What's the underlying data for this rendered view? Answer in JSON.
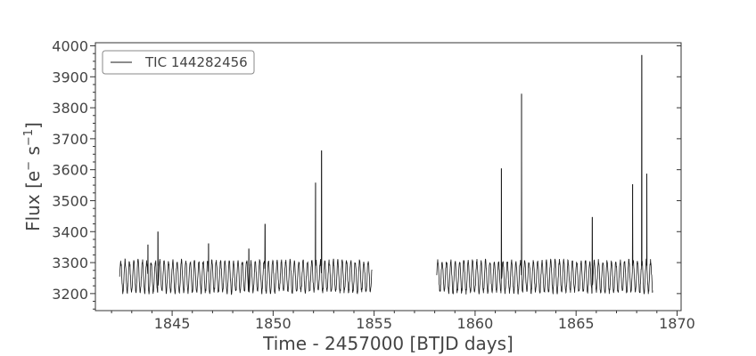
{
  "chart_data": {
    "type": "line",
    "xlabel": "Time - 2457000 [BTJD days]",
    "ylabel_main": "Flux [e",
    "ylabel_sup1": "−",
    "ylabel_mid": " s",
    "ylabel_sup2": "−1",
    "ylabel_end": "]",
    "xlim": [
      1841.2,
      1870.2
    ],
    "ylim": [
      3145,
      4010
    ],
    "x_ticks": [
      1845,
      1850,
      1855,
      1860,
      1865,
      1870
    ],
    "x_tick_labels": [
      "1845",
      "1850",
      "1855",
      "1860",
      "1865",
      "1870"
    ],
    "y_ticks": [
      3200,
      3300,
      3400,
      3500,
      3600,
      3700,
      3800,
      3900,
      4000
    ],
    "y_tick_labels": [
      "3200",
      "3300",
      "3400",
      "3500",
      "3600",
      "3700",
      "3800",
      "3900",
      "4000"
    ],
    "legend_position": "top-left",
    "series": [
      {
        "name": "TIC 144282456",
        "color": "#1a1a1a",
        "segments": [
          {
            "x_start": 1842.4,
            "x_end": 1854.9,
            "baseline": 3255,
            "amplitude": 50,
            "period": 0.215
          },
          {
            "x_start": 1858.1,
            "x_end": 1868.8,
            "baseline": 3255,
            "amplitude": 50,
            "period": 0.215
          }
        ],
        "flares": [
          {
            "x": 1843.8,
            "y": 3358
          },
          {
            "x": 1844.3,
            "y": 3400
          },
          {
            "x": 1846.8,
            "y": 3362
          },
          {
            "x": 1848.8,
            "y": 3345
          },
          {
            "x": 1849.6,
            "y": 3425
          },
          {
            "x": 1852.1,
            "y": 3558
          },
          {
            "x": 1852.4,
            "y": 3662
          },
          {
            "x": 1861.3,
            "y": 3604
          },
          {
            "x": 1862.3,
            "y": 3845
          },
          {
            "x": 1865.8,
            "y": 3447
          },
          {
            "x": 1867.8,
            "y": 3553
          },
          {
            "x": 1868.25,
            "y": 3970
          },
          {
            "x": 1868.5,
            "y": 3587
          }
        ]
      }
    ]
  }
}
